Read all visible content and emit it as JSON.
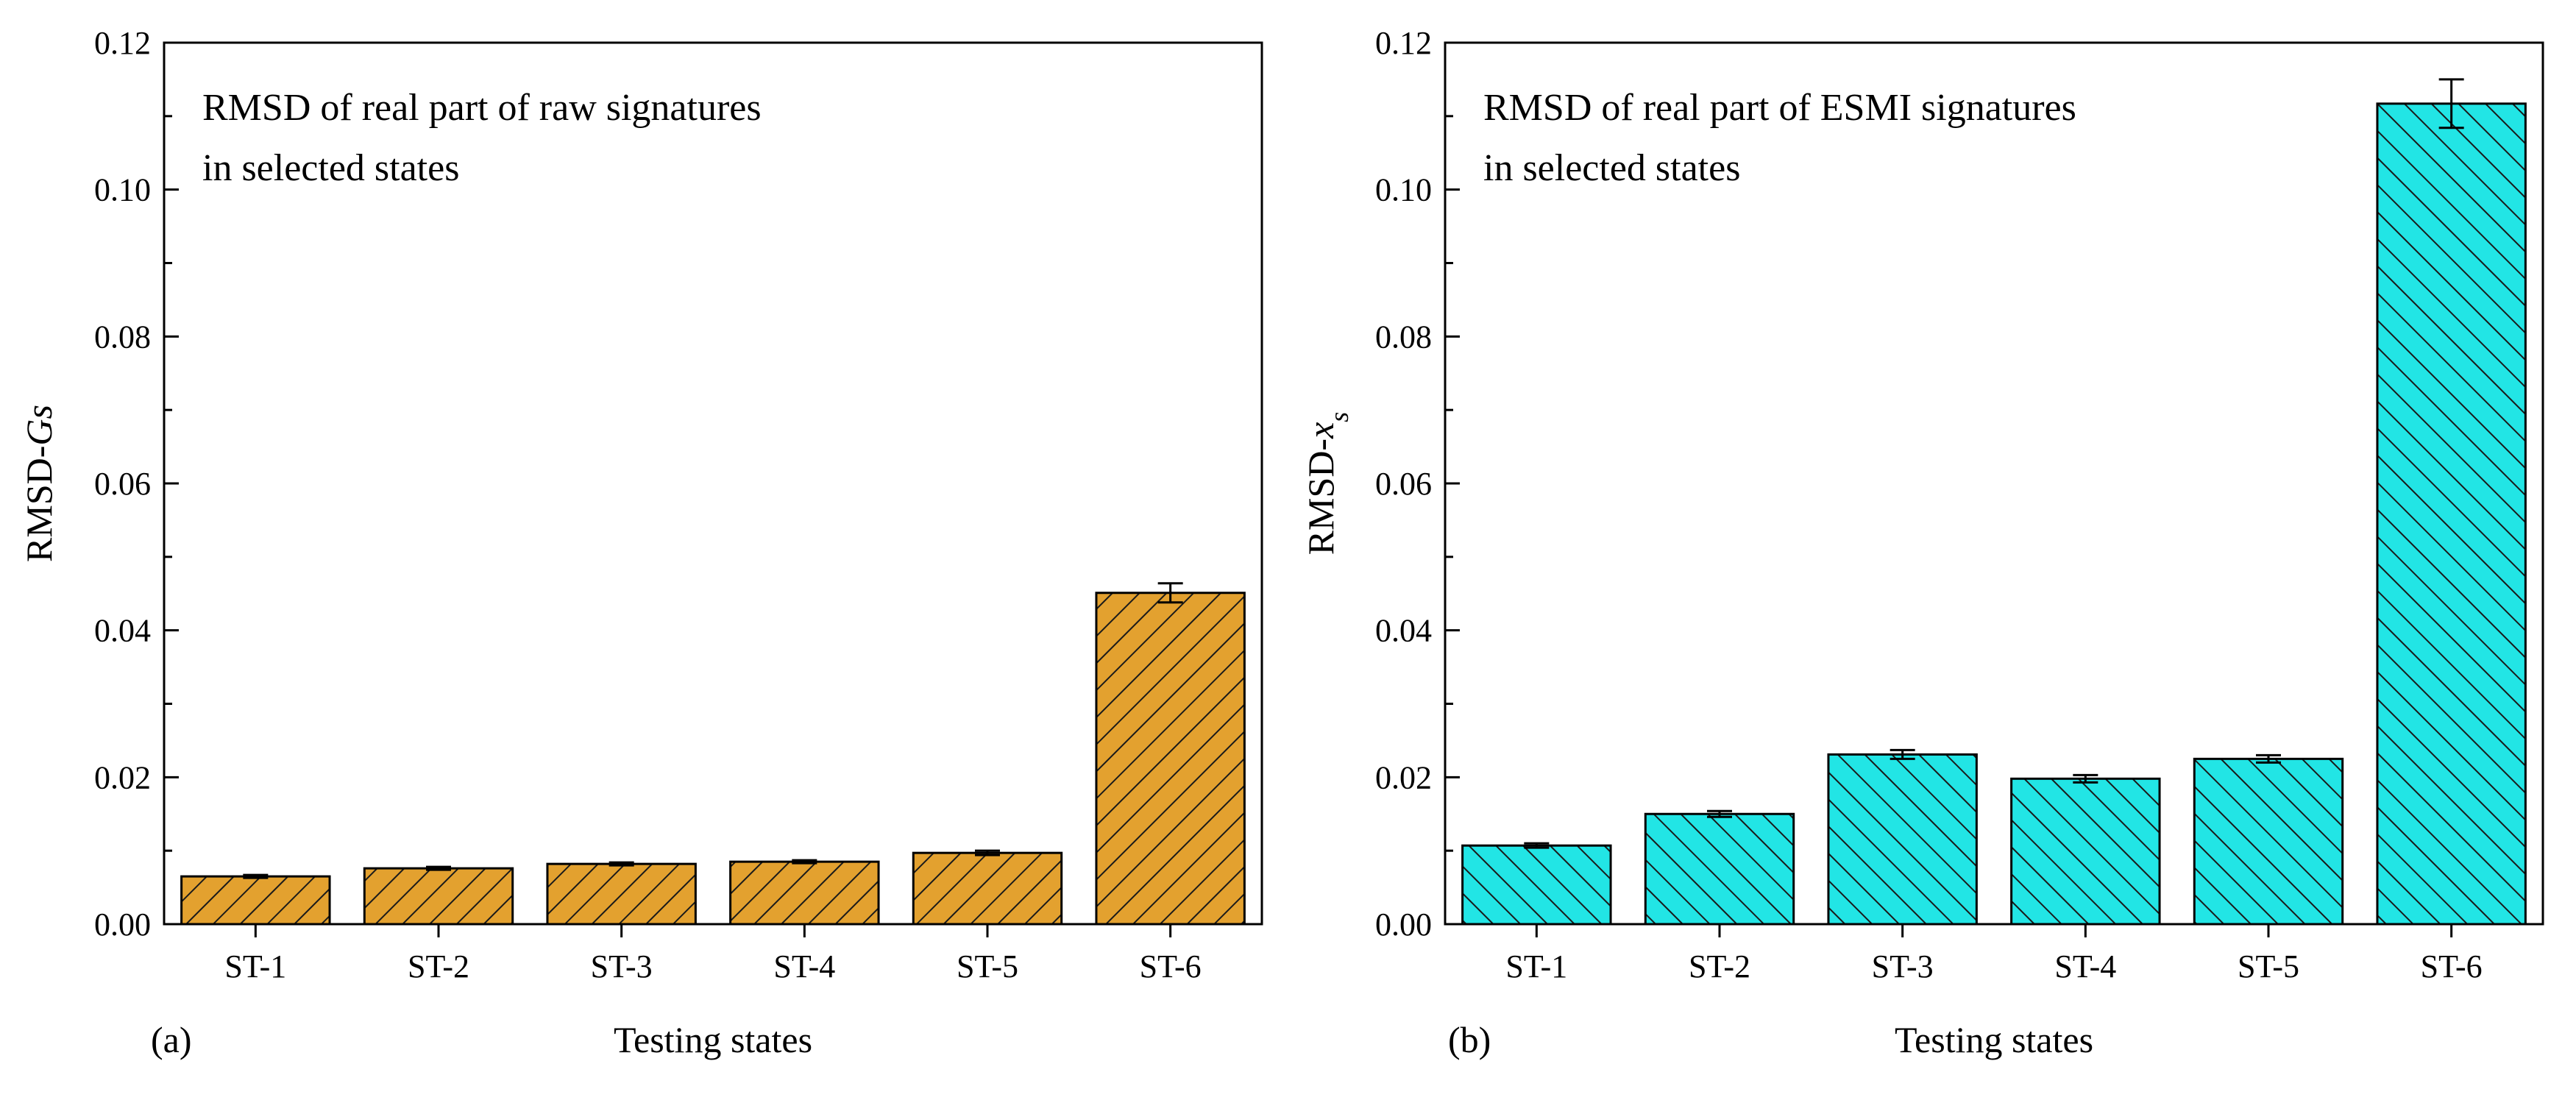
{
  "chart_data": [
    {
      "type": "bar",
      "panel_label": "(a)",
      "annotation_lines": [
        "RMSD of real part of raw signatures",
        "in selected states"
      ],
      "xlabel": "Testing states",
      "ylabel": {
        "prefix": "RMSD-",
        "symbol": "Gs",
        "subscript": ""
      },
      "categories": [
        "ST-1",
        "ST-2",
        "ST-3",
        "ST-4",
        "ST-5",
        "ST-6"
      ],
      "values": [
        0.0065,
        0.0076,
        0.0082,
        0.0085,
        0.0097,
        0.0451
      ],
      "errors": [
        0.0002,
        0.0002,
        0.0002,
        0.0002,
        0.0003,
        0.0013
      ],
      "ylim": [
        0,
        0.12
      ],
      "yticks": [
        0,
        0.02,
        0.04,
        0.06,
        0.08,
        0.1,
        0.12
      ],
      "ytick_labels": [
        "0.00",
        "0.02",
        "0.04",
        "0.06",
        "0.08",
        "0.10",
        "0.12"
      ],
      "bar_color": "#E3A12F",
      "hatch": "forward-diagonal"
    },
    {
      "type": "bar",
      "panel_label": "(b)",
      "annotation_lines": [
        "RMSD of real part of ESMI signatures",
        "in selected states"
      ],
      "xlabel": "Testing states",
      "ylabel": {
        "prefix": "RMSD-",
        "symbol": "x",
        "subscript": "s"
      },
      "categories": [
        "ST-1",
        "ST-2",
        "ST-3",
        "ST-4",
        "ST-5",
        "ST-6"
      ],
      "values": [
        0.0107,
        0.015,
        0.0231,
        0.0198,
        0.0225,
        0.1117
      ],
      "errors": [
        0.0003,
        0.0004,
        0.0006,
        0.0005,
        0.0005,
        0.0033
      ],
      "ylim": [
        0,
        0.12
      ],
      "yticks": [
        0,
        0.02,
        0.04,
        0.06,
        0.08,
        0.1,
        0.12
      ],
      "ytick_labels": [
        "0.00",
        "0.02",
        "0.04",
        "0.06",
        "0.08",
        "0.10",
        "0.12"
      ],
      "bar_color": "#22E5E5",
      "hatch": "back-diagonal"
    }
  ]
}
